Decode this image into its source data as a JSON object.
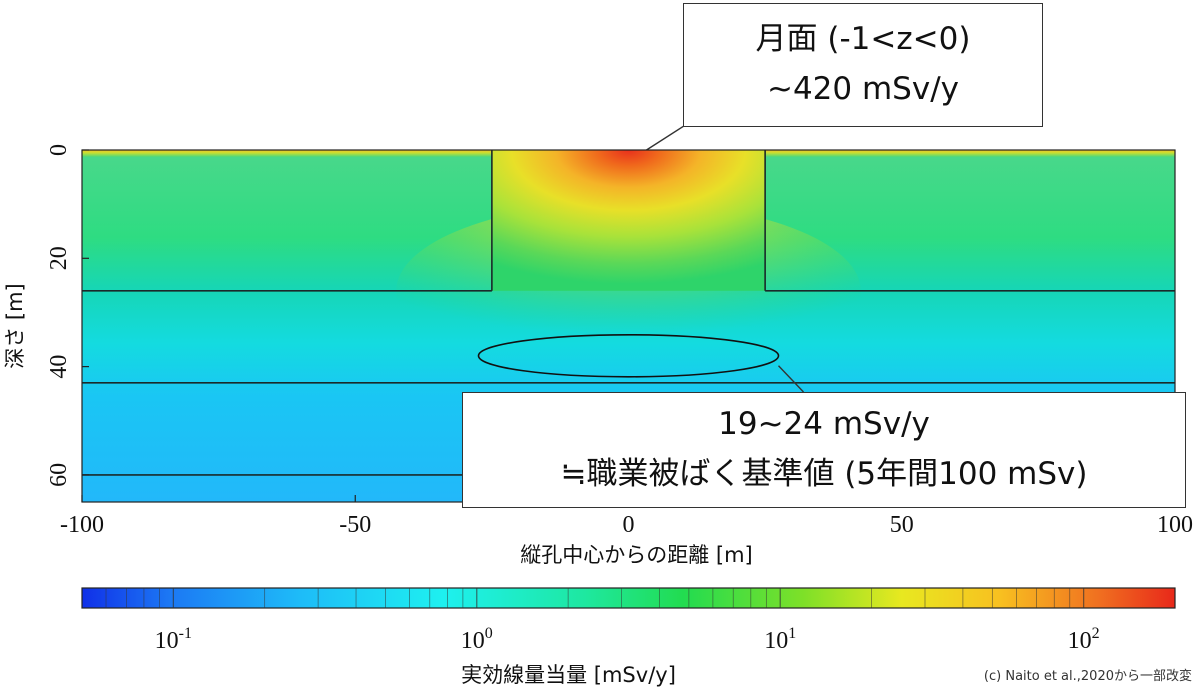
{
  "chart_data": {
    "type": "heatmap",
    "xlabel": "縦孔中心からの距離 [m]",
    "ylabel": "深さ [m]",
    "xlim": [
      -100,
      100
    ],
    "ylim": [
      0,
      65
    ],
    "y_inverted": true,
    "x_ticks": [
      "-100",
      "-50",
      "0",
      "50",
      "100"
    ],
    "y_ticks": [
      "0",
      "20",
      "40",
      "60"
    ],
    "shaft": {
      "x_range": [
        -25,
        25
      ],
      "depth": 26
    },
    "layer_boundaries": [
      26,
      43,
      60
    ],
    "colorbar": {
      "label": "実効線量当量  [mSv/y]",
      "scale": "log",
      "range": [
        0.05,
        200
      ],
      "ticks": [
        {
          "base": "10",
          "exp": "-1",
          "value": 0.1
        },
        {
          "base": "10",
          "exp": "0",
          "value": 1
        },
        {
          "base": "10",
          "exp": "1",
          "value": 10
        },
        {
          "base": "10",
          "exp": "2",
          "value": 100
        }
      ]
    },
    "colors": {
      "high": "#e8291a",
      "mid": "#f0e020",
      "low": "#1eb4ff",
      "field": "#22d46a"
    },
    "annotations": [
      {
        "lines": [
          "月面 (-1<z<0)",
          "~420 mSv/y"
        ],
        "target_x": 0,
        "target_depth": 0
      },
      {
        "lines": [
          "19~24 mSv/y",
          "≒職業被ばく基準値 (5年間100 mSv)"
        ],
        "target_x": 0,
        "target_depth": 40
      }
    ]
  },
  "credit": "(c) Naito et al.,2020から一部改変"
}
